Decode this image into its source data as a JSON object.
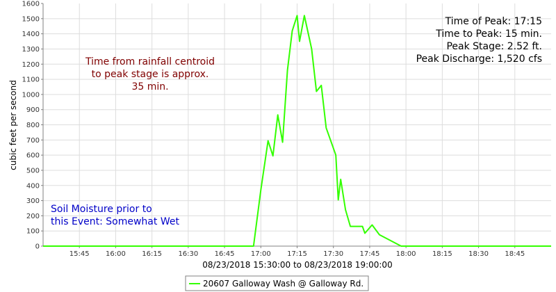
{
  "chart_data": {
    "type": "line",
    "xlabel": "08/23/2018 15:30:00 to 08/23/2018 19:00:00",
    "ylabel": "cubic feet per second",
    "ylim": [
      0,
      1600
    ],
    "xlim": [
      "15:30",
      "19:00"
    ],
    "y_ticks": [
      0,
      100,
      200,
      300,
      400,
      500,
      600,
      700,
      800,
      900,
      1000,
      1100,
      1200,
      1300,
      1400,
      1500,
      1600
    ],
    "x_ticks": [
      "15:45",
      "16:00",
      "16:15",
      "16:30",
      "16:45",
      "17:00",
      "17:15",
      "17:30",
      "17:45",
      "18:00",
      "18:15",
      "18:30",
      "18:45"
    ],
    "grid": true,
    "legend_position": "bottom-center",
    "series": [
      {
        "name": "20607 Galloway Wash @ Galloway Rd.",
        "color": "#33ff00",
        "x": [
          "15:30",
          "16:57",
          "17:00",
          "17:03",
          "17:05",
          "17:07",
          "17:09",
          "17:11",
          "17:13",
          "17:15",
          "17:16",
          "17:18",
          "17:21",
          "17:23",
          "17:25",
          "17:27",
          "17:31",
          "17:32",
          "17:33",
          "17:35",
          "17:37",
          "17:42",
          "17:43",
          "17:46",
          "17:49",
          "17:58",
          "19:00"
        ],
        "values": [
          0,
          0,
          370,
          695,
          595,
          865,
          685,
          1160,
          1420,
          1520,
          1350,
          1520,
          1300,
          1020,
          1060,
          780,
          600,
          305,
          440,
          240,
          130,
          130,
          85,
          140,
          75,
          0,
          0
        ]
      }
    ]
  },
  "annotations": {
    "peak_time": "Time of Peak: 17:15",
    "time_to_peak": "Time to Peak: 15 min.",
    "peak_stage": "Peak Stage: 2.52 ft.",
    "peak_discharge": "Peak Discharge: 1,520 cfs",
    "centroid_line1": "Time from rainfall centroid",
    "centroid_line2": "to peak stage is approx.",
    "centroid_line3": "35 min.",
    "soil_line1": "Soil Moisture prior to",
    "soil_line2": "this Event: Somewhat Wet",
    "centroid_color": "#800000",
    "soil_color": "#0000c8"
  }
}
